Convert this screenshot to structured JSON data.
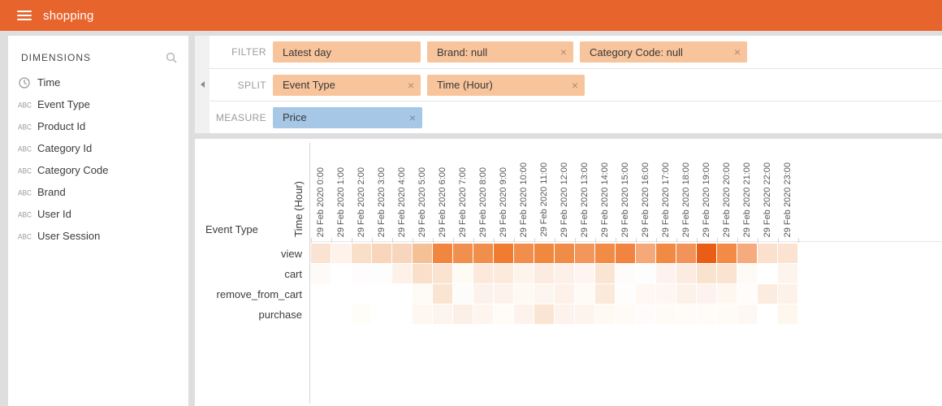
{
  "app": {
    "title": "shopping"
  },
  "colors": {
    "header_bg": "#e8642d",
    "page_bg": "#dedede",
    "tile_orange": "#f8c49c",
    "tile_blue": "#a6c7e6",
    "heat_max": "#ea5d17"
  },
  "sidebar": {
    "title": "DIMENSIONS",
    "search_icon": "search-icon",
    "items": [
      {
        "label": "Time",
        "icon": "clock"
      },
      {
        "label": "Event Type",
        "icon": "string"
      },
      {
        "label": "Product Id",
        "icon": "string"
      },
      {
        "label": "Category Id",
        "icon": "string"
      },
      {
        "label": "Category Code",
        "icon": "string"
      },
      {
        "label": "Brand",
        "icon": "string"
      },
      {
        "label": "User Id",
        "icon": "string"
      },
      {
        "label": "User Session",
        "icon": "string"
      }
    ]
  },
  "controls": {
    "filter": {
      "label": "FILTER",
      "tiles": [
        {
          "label": "Latest day",
          "removable": false
        },
        {
          "label": "Brand: null",
          "removable": true
        },
        {
          "label": "Category Code: null",
          "removable": true
        }
      ]
    },
    "split": {
      "label": "SPLIT",
      "tiles": [
        {
          "label": "Event Type",
          "removable": true
        },
        {
          "label": "Time (Hour)",
          "removable": true
        }
      ]
    },
    "measure": {
      "label": "MEASURE",
      "tiles": [
        {
          "label": "Price",
          "removable": true
        }
      ]
    }
  },
  "chart_data": {
    "type": "heatmap",
    "x_axis_label": "Time (Hour)",
    "y_axis_label": "Event Type",
    "measure": "Price",
    "legend_position": "none",
    "grid": false,
    "color_scale": {
      "min": "#ffffff",
      "max": "#ea5d17"
    },
    "columns": [
      "29 Feb 2020 0:00",
      "29 Feb 2020 1:00",
      "29 Feb 2020 2:00",
      "29 Feb 2020 3:00",
      "29 Feb 2020 4:00",
      "29 Feb 2020 5:00",
      "29 Feb 2020 6:00",
      "29 Feb 2020 7:00",
      "29 Feb 2020 8:00",
      "29 Feb 2020 9:00",
      "29 Feb 2020 10:00",
      "29 Feb 2020 11:00",
      "29 Feb 2020 12:00",
      "29 Feb 2020 13:00",
      "29 Feb 2020 14:00",
      "29 Feb 2020 15:00",
      "29 Feb 2020 16:00",
      "29 Feb 2020 17:00",
      "29 Feb 2020 18:00",
      "29 Feb 2020 19:00",
      "29 Feb 2020 20:00",
      "29 Feb 2020 21:00",
      "29 Feb 2020 22:00",
      "29 Feb 2020 23:00"
    ],
    "rows": [
      "view",
      "cart",
      "remove_from_cart",
      "purchase"
    ],
    "series": [
      {
        "name": "view",
        "intensities": [
          0.13,
          0.05,
          0.16,
          0.22,
          0.21,
          0.33,
          0.7,
          0.64,
          0.65,
          0.76,
          0.65,
          0.69,
          0.66,
          0.58,
          0.67,
          0.71,
          0.47,
          0.67,
          0.6,
          0.93,
          0.67,
          0.46,
          0.16,
          0.15
        ],
        "colors": [
          "#fbe3d3",
          "#fef2ea",
          "#fadfc8",
          "#f8d5bb",
          "#f8d6bd",
          "#f5c096",
          "#f0863f",
          "#f18f4e",
          "#f18e4c",
          "#ef7c31",
          "#f18e4c",
          "#f0883f",
          "#f18c48",
          "#f2965c",
          "#f18b46",
          "#f08440",
          "#f5a878",
          "#f08a45",
          "#f2935a",
          "#ea5d17",
          "#f18b46",
          "#f5ab7e",
          "#fbe1cd",
          "#fbe2d1"
        ]
      },
      {
        "name": "cart",
        "intensities": [
          0.02,
          0,
          0.01,
          0.01,
          0.07,
          0.15,
          0.13,
          0.03,
          0.1,
          0.1,
          0.05,
          0.09,
          0.07,
          0.04,
          0.12,
          0.02,
          0.01,
          0.05,
          0.09,
          0.14,
          0.13,
          0.02,
          0,
          0.05
        ],
        "colors": [
          "#fefaf7",
          "#ffffff",
          "#fefcfc",
          "#fefdfd",
          "#fdf1e8",
          "#fadfcb",
          "#fae3d1",
          "#fefaf4",
          "#fce9dc",
          "#fceadd",
          "#fdf4ec",
          "#fcebe0",
          "#fdf0e8",
          "#fef5f1",
          "#fae5d2",
          "#fefcfa",
          "#fefdfd",
          "#fef2ee",
          "#fcebe0",
          "#fae3ce",
          "#fae4d1",
          "#fefaf6",
          "#ffffff",
          "#fdf4ee"
        ]
      },
      {
        "name": "remove_from_cart",
        "intensities": [
          0,
          0,
          0,
          0,
          0,
          0.03,
          0.12,
          0.01,
          0.06,
          0.05,
          0.03,
          0.04,
          0.06,
          0.02,
          0.1,
          0.01,
          0.04,
          0.04,
          0.06,
          0.05,
          0.04,
          0.01,
          0.09,
          0.06
        ],
        "colors": [
          "#ffffff",
          "#ffffff",
          "#ffffff",
          "#ffffff",
          "#ffffff",
          "#fefaf4",
          "#fae5d3",
          "#fefcfb",
          "#fdf1ec",
          "#fdf3ec",
          "#fefaf2",
          "#fdf6f0",
          "#fdf1ea",
          "#fefaf6",
          "#fbe9d9",
          "#fffdfb",
          "#fef7f2",
          "#fef6f0",
          "#fdf2ea",
          "#fef2ee",
          "#fef7f0",
          "#fffcfa",
          "#fcecdf",
          "#fdf2ea"
        ]
      },
      {
        "name": "purchase",
        "intensities": [
          0,
          0,
          0.01,
          0,
          0,
          0.04,
          0.05,
          0.08,
          0.05,
          0.01,
          0.05,
          0.12,
          0.05,
          0.05,
          0.02,
          0.02,
          0.01,
          0.02,
          0.02,
          0.02,
          0.02,
          0.03,
          0,
          0.04
        ],
        "colors": [
          "#ffffff",
          "#ffffff",
          "#fffdf8",
          "#ffffff",
          "#ffffff",
          "#fdf7f0",
          "#fdf4ed",
          "#fcefe8",
          "#fdf5ee",
          "#fffcf7",
          "#fdf3ec",
          "#fae5d4",
          "#fdf3ec",
          "#fdf4ee",
          "#fefaf2",
          "#fefaf6",
          "#fffbfa",
          "#fefaf4",
          "#fefbf8",
          "#fefbf8",
          "#fefaf4",
          "#fef8f4",
          "#ffffff",
          "#fef7ee"
        ]
      }
    ]
  }
}
